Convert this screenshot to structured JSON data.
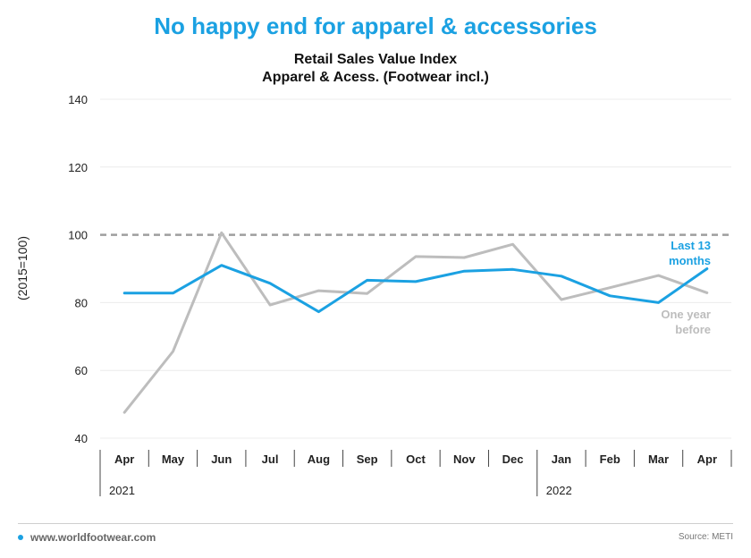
{
  "headline": "No happy end for apparel & accessories",
  "footer": {
    "website": "www.worldfootwear.com",
    "source": "Source: METI"
  },
  "colors": {
    "accent": "#1ba1e2",
    "previous": "#bdbdbd",
    "reference": "#9e9e9e"
  },
  "chart_data": {
    "type": "line",
    "title": "Retail Sales Value Index",
    "subtitle": "Apparel & Acess. (Footwear incl.)",
    "ylabel": "(2015=100)",
    "ylim": [
      40,
      140
    ],
    "yticks": [
      40,
      60,
      80,
      100,
      120,
      140
    ],
    "grid": true,
    "reference_line": 100,
    "categories": [
      "Apr",
      "May",
      "Jun",
      "Jul",
      "Aug",
      "Sep",
      "Oct",
      "Nov",
      "Dec",
      "Jan",
      "Feb",
      "Mar",
      "Apr"
    ],
    "year_groups": [
      {
        "label": "2021",
        "start": 0,
        "end": 8
      },
      {
        "label": "2022",
        "start": 9,
        "end": 12
      }
    ],
    "series": [
      {
        "name": "Last 13 months",
        "color": "#1ba1e2",
        "values": [
          82.8,
          82.8,
          91.0,
          85.7,
          77.3,
          86.6,
          86.2,
          89.3,
          89.8,
          87.8,
          82.0,
          80.0,
          90.0
        ]
      },
      {
        "name": "One year before",
        "color": "#bdbdbd",
        "values": [
          47.6,
          65.6,
          100.6,
          79.3,
          83.5,
          82.7,
          93.6,
          93.3,
          97.2,
          80.9,
          84.4,
          88.0,
          82.9
        ]
      }
    ]
  }
}
